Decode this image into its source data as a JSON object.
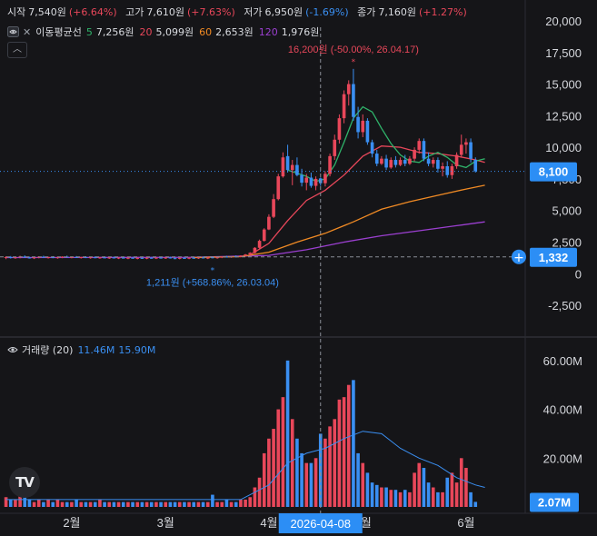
{
  "ohlc": {
    "open_label": "시작",
    "open": "7,540원",
    "open_chg": "(+6.64%)",
    "high_label": "고가",
    "high": "7,610원",
    "high_chg": "(+7.63%)",
    "low_label": "저가",
    "low": "6,950원",
    "low_chg": "(-1.69%)",
    "close_label": "종가",
    "close": "7,160원",
    "close_chg": "(+1.27%)"
  },
  "ma": {
    "name": "이동평균선",
    "items": [
      {
        "period": "5",
        "value": "7,256원",
        "color": "#2fb36a"
      },
      {
        "period": "20",
        "value": "5,099원",
        "color": "#e8475a"
      },
      {
        "period": "60",
        "value": "2,653원",
        "color": "#f08a24"
      },
      {
        "period": "120",
        "value": "1,976원",
        "color": "#9b3fd0"
      }
    ]
  },
  "volume_legend": {
    "name": "거래량 (20)",
    "v1": "11.46M",
    "v2": "15.90M"
  },
  "annotations": {
    "high_note": "16,200원 (-50.00%, 26.04.17)",
    "low_note": "1,211원 (+568.86%, 26.03.04)",
    "crosshair_date": "2026-04-08",
    "last_price": "8,100",
    "crosshair_price": "1,332",
    "last_volume": "2.07M"
  },
  "colors": {
    "up": "#e8475a",
    "down": "#3a8ff2",
    "bg": "#151518"
  },
  "chart_data": {
    "type": "candlestick",
    "price_axis": {
      "ylim": [
        -3500,
        20500
      ],
      "ticks": [
        -2500,
        0,
        2500,
        5000,
        7500,
        10000,
        12500,
        15000,
        17500,
        20000
      ],
      "tick_labels": [
        "-2,500",
        "0",
        "2,500",
        "5,000",
        "7,500",
        "10,000",
        "12,500",
        "15,000",
        "17,500",
        "20,000"
      ]
    },
    "volume_axis": {
      "ylim": [
        0,
        70
      ],
      "ticks": [
        20,
        40,
        60
      ],
      "tick_labels": [
        "20.00M",
        "40.00M",
        "60.00M"
      ]
    },
    "x_labels": [
      "2월",
      "3월",
      "4월",
      "5월",
      "6월"
    ],
    "x_label_positions": [
      14,
      34,
      56,
      76,
      98
    ],
    "candles": [
      {
        "o": 1280,
        "h": 1380,
        "l": 1150,
        "c": 1320,
        "v": 4
      },
      {
        "o": 1320,
        "h": 1400,
        "l": 1200,
        "c": 1250,
        "v": 3
      },
      {
        "o": 1250,
        "h": 1330,
        "l": 1180,
        "c": 1300,
        "v": 3
      },
      {
        "o": 1300,
        "h": 1420,
        "l": 1220,
        "c": 1360,
        "v": 5
      },
      {
        "o": 1360,
        "h": 1450,
        "l": 1250,
        "c": 1280,
        "v": 4
      },
      {
        "o": 1280,
        "h": 1350,
        "l": 1200,
        "c": 1230,
        "v": 3
      },
      {
        "o": 1230,
        "h": 1320,
        "l": 1160,
        "c": 1290,
        "v": 2
      },
      {
        "o": 1290,
        "h": 1380,
        "l": 1220,
        "c": 1340,
        "v": 3
      },
      {
        "o": 1340,
        "h": 1420,
        "l": 1260,
        "c": 1270,
        "v": 2
      },
      {
        "o": 1270,
        "h": 1350,
        "l": 1200,
        "c": 1310,
        "v": 3
      },
      {
        "o": 1310,
        "h": 1390,
        "l": 1230,
        "c": 1260,
        "v": 2
      },
      {
        "o": 1260,
        "h": 1340,
        "l": 1190,
        "c": 1300,
        "v": 3
      },
      {
        "o": 1300,
        "h": 1380,
        "l": 1230,
        "c": 1350,
        "v": 2
      },
      {
        "o": 1350,
        "h": 1430,
        "l": 1270,
        "c": 1290,
        "v": 2
      },
      {
        "o": 1290,
        "h": 1360,
        "l": 1220,
        "c": 1320,
        "v": 2
      },
      {
        "o": 1320,
        "h": 1400,
        "l": 1250,
        "c": 1270,
        "v": 3
      },
      {
        "o": 1270,
        "h": 1340,
        "l": 1200,
        "c": 1310,
        "v": 2
      },
      {
        "o": 1310,
        "h": 1380,
        "l": 1240,
        "c": 1260,
        "v": 2
      },
      {
        "o": 1260,
        "h": 1330,
        "l": 1190,
        "c": 1300,
        "v": 2
      },
      {
        "o": 1300,
        "h": 1370,
        "l": 1230,
        "c": 1250,
        "v": 2
      },
      {
        "o": 1250,
        "h": 1320,
        "l": 1180,
        "c": 1290,
        "v": 3
      },
      {
        "o": 1290,
        "h": 1360,
        "l": 1220,
        "c": 1240,
        "v": 2
      },
      {
        "o": 1240,
        "h": 1310,
        "l": 1170,
        "c": 1280,
        "v": 2
      },
      {
        "o": 1280,
        "h": 1350,
        "l": 1210,
        "c": 1230,
        "v": 2
      },
      {
        "o": 1230,
        "h": 1300,
        "l": 1160,
        "c": 1270,
        "v": 2
      },
      {
        "o": 1270,
        "h": 1340,
        "l": 1200,
        "c": 1220,
        "v": 2
      },
      {
        "o": 1220,
        "h": 1290,
        "l": 1150,
        "c": 1260,
        "v": 2
      },
      {
        "o": 1260,
        "h": 1330,
        "l": 1190,
        "c": 1210,
        "v": 2
      },
      {
        "o": 1210,
        "h": 1290,
        "l": 1140,
        "c": 1250,
        "v": 2
      },
      {
        "o": 1250,
        "h": 1320,
        "l": 1180,
        "c": 1220,
        "v": 2
      },
      {
        "o": 1220,
        "h": 1300,
        "l": 1150,
        "c": 1260,
        "v": 2
      },
      {
        "o": 1260,
        "h": 1330,
        "l": 1190,
        "c": 1230,
        "v": 2
      },
      {
        "o": 1230,
        "h": 1300,
        "l": 1160,
        "c": 1270,
        "v": 2
      },
      {
        "o": 1270,
        "h": 1340,
        "l": 1200,
        "c": 1240,
        "v": 2
      },
      {
        "o": 1240,
        "h": 1310,
        "l": 1170,
        "c": 1280,
        "v": 2
      },
      {
        "o": 1280,
        "h": 1350,
        "l": 1200,
        "c": 1230,
        "v": 2
      },
      {
        "o": 1230,
        "h": 1300,
        "l": 1150,
        "c": 1210,
        "v": 2
      },
      {
        "o": 1210,
        "h": 1280,
        "l": 1140,
        "c": 1250,
        "v": 2
      },
      {
        "o": 1250,
        "h": 1320,
        "l": 1180,
        "c": 1220,
        "v": 2
      },
      {
        "o": 1220,
        "h": 1290,
        "l": 1150,
        "c": 1260,
        "v": 2
      },
      {
        "o": 1260,
        "h": 1330,
        "l": 1190,
        "c": 1240,
        "v": 2
      },
      {
        "o": 1240,
        "h": 1310,
        "l": 1170,
        "c": 1280,
        "v": 2
      },
      {
        "o": 1280,
        "h": 1350,
        "l": 1210,
        "c": 1230,
        "v": 2
      },
      {
        "o": 1230,
        "h": 1300,
        "l": 1160,
        "c": 1270,
        "v": 2
      },
      {
        "o": 1300,
        "h": 1310,
        "l": 1211,
        "c": 1240,
        "v": 5
      },
      {
        "o": 1240,
        "h": 1320,
        "l": 1180,
        "c": 1300,
        "v": 2
      },
      {
        "o": 1300,
        "h": 1380,
        "l": 1230,
        "c": 1350,
        "v": 2
      },
      {
        "o": 1350,
        "h": 1420,
        "l": 1280,
        "c": 1310,
        "v": 3
      },
      {
        "o": 1310,
        "h": 1400,
        "l": 1260,
        "c": 1380,
        "v": 2
      },
      {
        "o": 1380,
        "h": 1450,
        "l": 1300,
        "c": 1340,
        "v": 2
      },
      {
        "o": 1340,
        "h": 1460,
        "l": 1300,
        "c": 1420,
        "v": 3
      },
      {
        "o": 1420,
        "h": 1560,
        "l": 1380,
        "c": 1520,
        "v": 3
      },
      {
        "o": 1520,
        "h": 1700,
        "l": 1480,
        "c": 1650,
        "v": 4
      },
      {
        "o": 1650,
        "h": 2100,
        "l": 1600,
        "c": 2050,
        "v": 8
      },
      {
        "o": 2050,
        "h": 2700,
        "l": 2000,
        "c": 2600,
        "v": 12
      },
      {
        "o": 2600,
        "h": 3600,
        "l": 2550,
        "c": 3500,
        "v": 22
      },
      {
        "o": 3500,
        "h": 4700,
        "l": 3450,
        "c": 4500,
        "v": 28
      },
      {
        "o": 4500,
        "h": 6300,
        "l": 4400,
        "c": 5900,
        "v": 32
      },
      {
        "o": 5900,
        "h": 7900,
        "l": 5800,
        "c": 7700,
        "v": 40
      },
      {
        "o": 7700,
        "h": 9600,
        "l": 7600,
        "c": 9200,
        "v": 45
      },
      {
        "o": 9300,
        "h": 10200,
        "l": 8000,
        "c": 8200,
        "v": 60
      },
      {
        "o": 8200,
        "h": 9000,
        "l": 7000,
        "c": 8600,
        "v": 36
      },
      {
        "o": 8600,
        "h": 9200,
        "l": 7700,
        "c": 7800,
        "v": 28
      },
      {
        "o": 7800,
        "h": 8300,
        "l": 6900,
        "c": 7200,
        "v": 22
      },
      {
        "o": 7200,
        "h": 7900,
        "l": 6600,
        "c": 7600,
        "v": 18
      },
      {
        "o": 7600,
        "h": 8000,
        "l": 6800,
        "c": 6950,
        "v": 18
      },
      {
        "o": 6950,
        "h": 7700,
        "l": 6600,
        "c": 7500,
        "v": 20
      },
      {
        "o": 7540,
        "h": 7610,
        "l": 6950,
        "c": 7160,
        "v": 30
      },
      {
        "o": 7160,
        "h": 8100,
        "l": 6900,
        "c": 7900,
        "v": 28
      },
      {
        "o": 7900,
        "h": 9500,
        "l": 7700,
        "c": 9300,
        "v": 33
      },
      {
        "o": 9300,
        "h": 11000,
        "l": 9000,
        "c": 10600,
        "v": 36
      },
      {
        "o": 10600,
        "h": 12600,
        "l": 10300,
        "c": 12300,
        "v": 44
      },
      {
        "o": 12300,
        "h": 14500,
        "l": 11900,
        "c": 14200,
        "v": 45
      },
      {
        "o": 14200,
        "h": 15300,
        "l": 13300,
        "c": 15000,
        "v": 50
      },
      {
        "o": 15000,
        "h": 16200,
        "l": 12100,
        "c": 12400,
        "v": 52
      },
      {
        "o": 12400,
        "h": 13200,
        "l": 10700,
        "c": 11200,
        "v": 22
      },
      {
        "o": 11200,
        "h": 12600,
        "l": 10800,
        "c": 12100,
        "v": 18
      },
      {
        "o": 12100,
        "h": 12300,
        "l": 10200,
        "c": 10400,
        "v": 14
      },
      {
        "o": 10400,
        "h": 10600,
        "l": 9200,
        "c": 9500,
        "v": 10
      },
      {
        "o": 9500,
        "h": 9800,
        "l": 8500,
        "c": 8700,
        "v": 9
      },
      {
        "o": 8700,
        "h": 9300,
        "l": 8600,
        "c": 9100,
        "v": 8
      },
      {
        "o": 9100,
        "h": 9400,
        "l": 8200,
        "c": 8400,
        "v": 8
      },
      {
        "o": 8400,
        "h": 9200,
        "l": 8300,
        "c": 9000,
        "v": 7
      },
      {
        "o": 9000,
        "h": 9300,
        "l": 8400,
        "c": 8600,
        "v": 7
      },
      {
        "o": 8600,
        "h": 9200,
        "l": 8500,
        "c": 9000,
        "v": 6
      },
      {
        "o": 9000,
        "h": 9400,
        "l": 8500,
        "c": 8700,
        "v": 7
      },
      {
        "o": 8700,
        "h": 9300,
        "l": 8600,
        "c": 9100,
        "v": 6
      },
      {
        "o": 9100,
        "h": 10000,
        "l": 8900,
        "c": 9800,
        "v": 14
      },
      {
        "o": 9800,
        "h": 10700,
        "l": 9500,
        "c": 10500,
        "v": 18
      },
      {
        "o": 10500,
        "h": 10700,
        "l": 8900,
        "c": 9100,
        "v": 16
      },
      {
        "o": 9100,
        "h": 9600,
        "l": 8500,
        "c": 8700,
        "v": 10
      },
      {
        "o": 8700,
        "h": 9200,
        "l": 8400,
        "c": 9000,
        "v": 8
      },
      {
        "o": 9000,
        "h": 9200,
        "l": 8000,
        "c": 8300,
        "v": 6
      },
      {
        "o": 8300,
        "h": 8800,
        "l": 7700,
        "c": 8500,
        "v": 6
      },
      {
        "o": 8500,
        "h": 8900,
        "l": 7600,
        "c": 7800,
        "v": 12
      },
      {
        "o": 7800,
        "h": 8700,
        "l": 7500,
        "c": 8500,
        "v": 14
      },
      {
        "o": 8500,
        "h": 9600,
        "l": 8300,
        "c": 9400,
        "v": 10
      },
      {
        "o": 9400,
        "h": 11000,
        "l": 9200,
        "c": 10200,
        "v": 20
      },
      {
        "o": 10200,
        "h": 10700,
        "l": 9500,
        "c": 10400,
        "v": 16
      },
      {
        "o": 10400,
        "h": 10700,
        "l": 8800,
        "c": 9100,
        "v": 6
      },
      {
        "o": 9000,
        "h": 9200,
        "l": 8000,
        "c": 8100,
        "v": 2.07
      }
    ],
    "ma5": [
      [
        60,
        8200
      ],
      [
        64,
        7700
      ],
      [
        66,
        7300
      ],
      [
        68,
        7500
      ],
      [
        70,
        8600
      ],
      [
        72,
        10400
      ],
      [
        74,
        12300
      ],
      [
        76,
        13200
      ],
      [
        78,
        12800
      ],
      [
        80,
        11500
      ],
      [
        82,
        10300
      ],
      [
        84,
        9400
      ],
      [
        86,
        8900
      ],
      [
        88,
        8800
      ],
      [
        90,
        9300
      ],
      [
        92,
        9600
      ],
      [
        94,
        9200
      ],
      [
        96,
        8600
      ],
      [
        98,
        8400
      ],
      [
        100,
        8900
      ],
      [
        102,
        9100
      ]
    ],
    "ma20": [
      [
        52,
        1500
      ],
      [
        56,
        2400
      ],
      [
        60,
        4200
      ],
      [
        64,
        5800
      ],
      [
        68,
        6600
      ],
      [
        72,
        7800
      ],
      [
        76,
        9300
      ],
      [
        80,
        10100
      ],
      [
        84,
        10000
      ],
      [
        88,
        9600
      ],
      [
        92,
        9500
      ],
      [
        96,
        9300
      ],
      [
        100,
        9000
      ],
      [
        102,
        8800
      ]
    ],
    "ma60": [
      [
        40,
        1280
      ],
      [
        50,
        1350
      ],
      [
        56,
        1700
      ],
      [
        62,
        2500
      ],
      [
        68,
        3200
      ],
      [
        74,
        4100
      ],
      [
        80,
        5100
      ],
      [
        86,
        5700
      ],
      [
        92,
        6200
      ],
      [
        98,
        6700
      ],
      [
        102,
        7000
      ]
    ],
    "ma120": [
      [
        0,
        1280
      ],
      [
        40,
        1300
      ],
      [
        56,
        1450
      ],
      [
        64,
        1900
      ],
      [
        72,
        2500
      ],
      [
        80,
        3000
      ],
      [
        88,
        3400
      ],
      [
        96,
        3800
      ],
      [
        102,
        4100
      ]
    ],
    "volume_ma": [
      [
        0,
        3
      ],
      [
        40,
        3
      ],
      [
        50,
        3
      ],
      [
        56,
        9
      ],
      [
        60,
        18
      ],
      [
        64,
        22
      ],
      [
        68,
        24
      ],
      [
        72,
        28
      ],
      [
        76,
        31
      ],
      [
        80,
        30
      ],
      [
        84,
        24
      ],
      [
        88,
        20
      ],
      [
        92,
        17
      ],
      [
        96,
        12
      ],
      [
        100,
        9
      ],
      [
        102,
        8
      ]
    ]
  }
}
